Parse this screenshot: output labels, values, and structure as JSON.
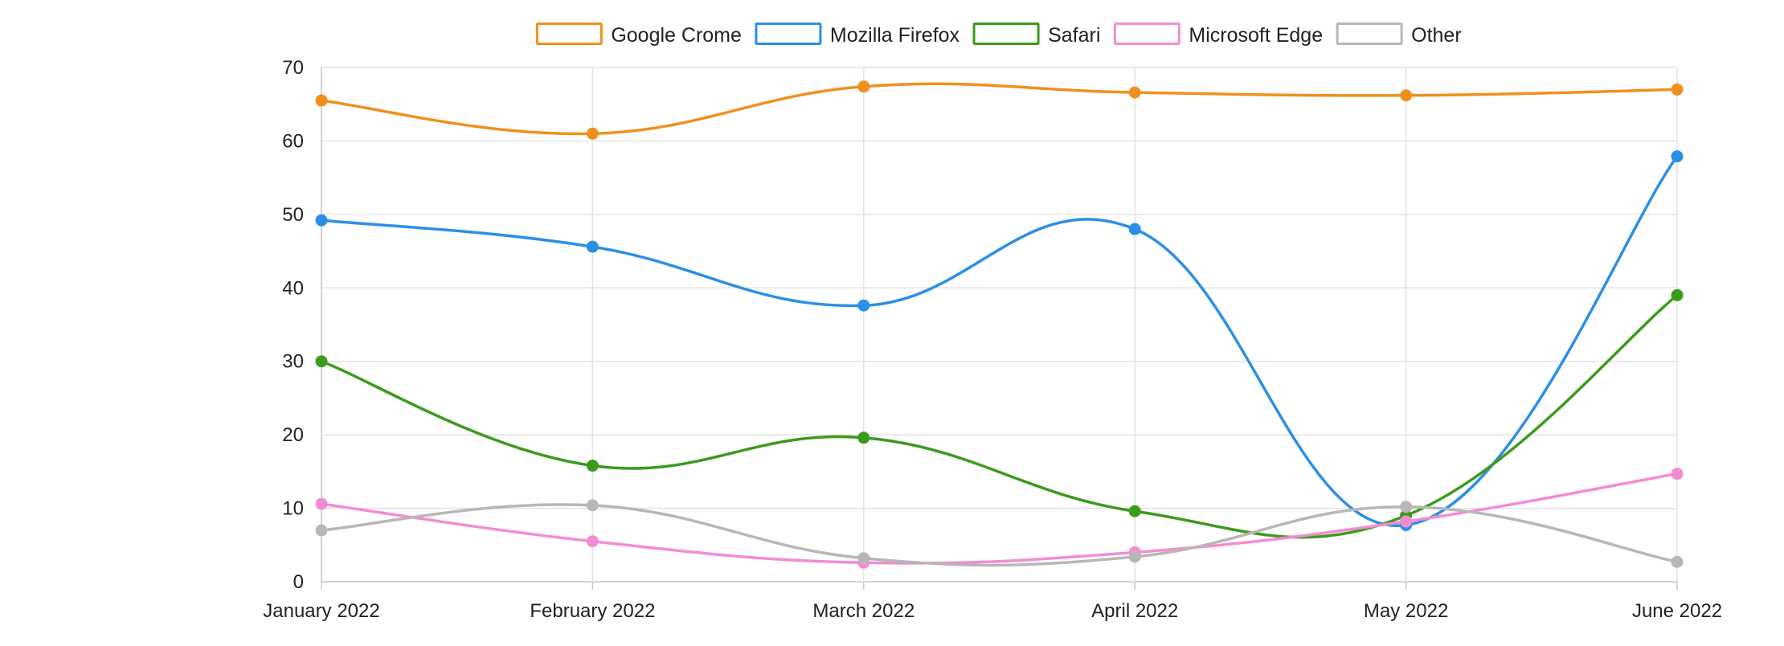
{
  "chart_data": {
    "type": "line",
    "title": "",
    "xlabel": "",
    "ylabel": "",
    "categories": [
      "January 2022",
      "February 2022",
      "March 2022",
      "April 2022",
      "May 2022",
      "June 2022"
    ],
    "ylim": [
      0,
      70
    ],
    "yticks": [
      0,
      10,
      20,
      30,
      40,
      50,
      60,
      70
    ],
    "grid": true,
    "legend_position": "top",
    "curve": "smooth",
    "series": [
      {
        "name": "Google Crome",
        "color": "#f0901c",
        "values": [
          65.5,
          61,
          67.4,
          66.6,
          66.2,
          67
        ]
      },
      {
        "name": "Mozilla Firefox",
        "color": "#2b8fe8",
        "values": [
          49.2,
          45.6,
          37.6,
          48,
          7.7,
          57.9
        ]
      },
      {
        "name": "Safari",
        "color": "#3b9b1c",
        "values": [
          30,
          15.8,
          19.6,
          9.6,
          9,
          39
        ]
      },
      {
        "name": "Microsoft Edge",
        "color": "#f28cd3",
        "values": [
          10.6,
          5.5,
          2.6,
          4,
          8.2,
          14.7
        ]
      },
      {
        "name": "Other",
        "color": "#b9b6b6",
        "values": [
          7,
          10.4,
          3.2,
          3.4,
          10.2,
          2.7
        ]
      }
    ]
  }
}
